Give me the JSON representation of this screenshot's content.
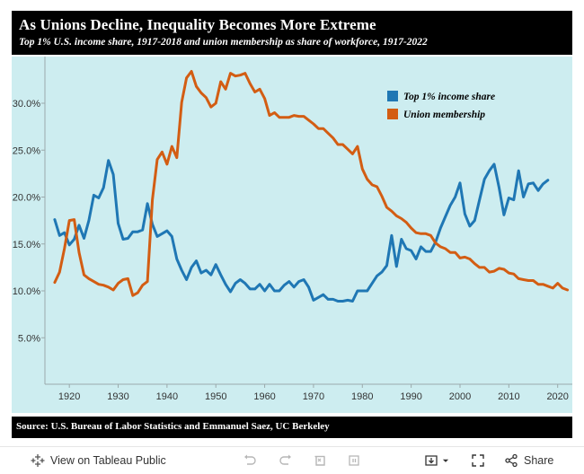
{
  "header": {
    "title": "As Unions Decline, Inequality Becomes More Extreme",
    "subtitle": "Top 1% U.S. income share, 1917-2018 and union membership as share of workforce, 1917-2022"
  },
  "footer": {
    "source": "Source: U.S. Bureau of Labor Statistics and Emmanuel Saez, UC Berkeley"
  },
  "toolbar": {
    "view_on_tableau": "View on Tableau Public",
    "share_label": "Share",
    "icons": [
      "tableau-logo-icon",
      "undo-icon",
      "redo-icon",
      "revert-icon",
      "pause-icon",
      "download-icon",
      "chevron-down-icon",
      "fullscreen-icon",
      "share-icon"
    ]
  },
  "colors": {
    "background": "#cdedf0",
    "top1": "#1f77b4",
    "union": "#d35d13",
    "header_bg": "#000000"
  },
  "chart_data": {
    "type": "line",
    "title": "",
    "xlabel": "",
    "ylabel": "",
    "xlim": [
      1915,
      2023
    ],
    "ylim": [
      0,
      32
    ],
    "x_ticks": [
      1920,
      1930,
      1940,
      1950,
      1960,
      1970,
      1980,
      1990,
      2000,
      2010,
      2020
    ],
    "x_tick_labels": [
      "1920",
      "1930",
      "1940",
      "1950",
      "1960",
      "1970",
      "1980",
      "1990",
      "2000",
      "2010",
      "2020"
    ],
    "y_ticks": [
      5,
      10,
      15,
      20,
      25,
      30
    ],
    "y_tick_labels": [
      "5.0%",
      "10.0%",
      "15.0%",
      "20.0%",
      "25.0%",
      "30.0%"
    ],
    "grid": false,
    "legend_position": "top-right",
    "series": [
      {
        "name": "Top 1% income share",
        "color": "#1f77b4",
        "x": [
          1917,
          1918,
          1919,
          1920,
          1921,
          1922,
          1923,
          1924,
          1925,
          1926,
          1927,
          1928,
          1929,
          1930,
          1931,
          1932,
          1933,
          1934,
          1935,
          1936,
          1937,
          1938,
          1939,
          1940,
          1941,
          1942,
          1943,
          1944,
          1945,
          1946,
          1947,
          1948,
          1949,
          1950,
          1951,
          1952,
          1953,
          1954,
          1955,
          1956,
          1957,
          1958,
          1959,
          1960,
          1961,
          1962,
          1963,
          1964,
          1965,
          1966,
          1967,
          1968,
          1969,
          1970,
          1971,
          1972,
          1973,
          1974,
          1975,
          1976,
          1977,
          1978,
          1979,
          1980,
          1981,
          1982,
          1983,
          1984,
          1985,
          1986,
          1987,
          1988,
          1989,
          1990,
          1991,
          1992,
          1993,
          1994,
          1995,
          1996,
          1997,
          1998,
          1999,
          2000,
          2001,
          2002,
          2003,
          2004,
          2005,
          2006,
          2007,
          2008,
          2009,
          2010,
          2011,
          2012,
          2013,
          2014,
          2015,
          2016,
          2017,
          2018
        ],
        "values": [
          17.6,
          15.9,
          16.2,
          14.9,
          15.5,
          17.0,
          15.6,
          17.5,
          20.2,
          19.9,
          21.0,
          23.9,
          22.4,
          17.2,
          15.5,
          15.6,
          16.3,
          16.3,
          16.5,
          19.3,
          17.1,
          15.8,
          16.1,
          16.4,
          15.8,
          13.4,
          12.2,
          11.2,
          12.5,
          13.2,
          11.9,
          12.2,
          11.7,
          12.8,
          11.7,
          10.7,
          9.9,
          10.8,
          11.2,
          10.8,
          10.2,
          10.2,
          10.7,
          10.0,
          10.7,
          10.0,
          10.0,
          10.6,
          11.0,
          10.4,
          11.0,
          11.2,
          10.4,
          9.0,
          9.3,
          9.6,
          9.1,
          9.1,
          8.9,
          8.9,
          9.0,
          8.9,
          10.0,
          10.0,
          10.0,
          10.8,
          11.6,
          12.0,
          12.7,
          15.9,
          12.6,
          15.5,
          14.5,
          14.3,
          13.4,
          14.7,
          14.2,
          14.2,
          15.2,
          16.7,
          17.9,
          19.1,
          20.0,
          21.5,
          18.2,
          16.9,
          17.5,
          19.7,
          21.9,
          22.8,
          23.5,
          21.0,
          18.1,
          19.9,
          19.7,
          22.8,
          20.0,
          21.4,
          21.5,
          20.7,
          21.4,
          21.8
        ]
      },
      {
        "name": "Union membership",
        "color": "#d35d13",
        "x": [
          1917,
          1918,
          1919,
          1920,
          1921,
          1922,
          1923,
          1924,
          1925,
          1926,
          1927,
          1928,
          1929,
          1930,
          1931,
          1932,
          1933,
          1934,
          1935,
          1936,
          1937,
          1938,
          1939,
          1940,
          1941,
          1942,
          1943,
          1944,
          1945,
          1946,
          1947,
          1948,
          1949,
          1950,
          1951,
          1952,
          1953,
          1954,
          1955,
          1956,
          1957,
          1958,
          1959,
          1960,
          1961,
          1962,
          1963,
          1964,
          1965,
          1966,
          1967,
          1968,
          1969,
          1970,
          1971,
          1972,
          1973,
          1974,
          1975,
          1976,
          1977,
          1978,
          1979,
          1980,
          1981,
          1982,
          1983,
          1984,
          1985,
          1986,
          1987,
          1988,
          1989,
          1990,
          1991,
          1992,
          1993,
          1994,
          1995,
          1996,
          1997,
          1998,
          1999,
          2000,
          2001,
          2002,
          2003,
          2004,
          2005,
          2006,
          2007,
          2008,
          2009,
          2010,
          2011,
          2012,
          2013,
          2014,
          2015,
          2016,
          2017,
          2018,
          2019,
          2020,
          2021,
          2022
        ],
        "values": [
          10.9,
          12.0,
          14.5,
          17.5,
          17.6,
          14.1,
          11.7,
          11.3,
          11.0,
          10.7,
          10.6,
          10.4,
          10.1,
          10.8,
          11.2,
          11.3,
          9.5,
          9.8,
          10.6,
          11.0,
          19.7,
          24.0,
          24.8,
          23.5,
          25.4,
          24.2,
          30.1,
          32.7,
          33.4,
          31.8,
          31.1,
          30.6,
          29.6,
          30.0,
          32.3,
          31.5,
          33.2,
          32.9,
          33.0,
          33.2,
          32.1,
          31.2,
          31.5,
          30.5,
          28.7,
          29.0,
          28.5,
          28.5,
          28.5,
          28.7,
          28.6,
          28.6,
          28.2,
          27.8,
          27.3,
          27.3,
          26.8,
          26.3,
          25.6,
          25.6,
          25.1,
          24.6,
          25.4,
          23.0,
          21.9,
          21.3,
          21.1,
          20.1,
          18.9,
          18.5,
          18.0,
          17.7,
          17.3,
          16.7,
          16.2,
          16.1,
          16.1,
          15.9,
          15.1,
          14.7,
          14.5,
          14.1,
          14.1,
          13.5,
          13.6,
          13.4,
          12.9,
          12.5,
          12.5,
          12.0,
          12.1,
          12.4,
          12.3,
          11.9,
          11.8,
          11.3,
          11.2,
          11.1,
          11.1,
          10.7,
          10.7,
          10.5,
          10.3,
          10.8,
          10.3,
          10.1
        ]
      }
    ]
  }
}
